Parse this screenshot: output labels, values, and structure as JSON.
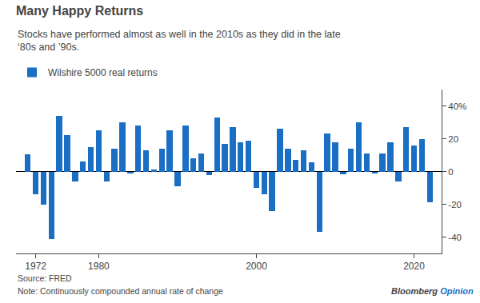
{
  "chart_data": {
    "type": "bar",
    "title": "Many Happy Returns",
    "subtitle": "Stocks have performed almost as well in the 2010s as they did in the late\n‘80s and ’90s.",
    "x": [
      1971,
      1972,
      1973,
      1974,
      1975,
      1976,
      1977,
      1978,
      1979,
      1980,
      1981,
      1982,
      1983,
      1984,
      1985,
      1986,
      1987,
      1988,
      1989,
      1990,
      1991,
      1992,
      1993,
      1994,
      1995,
      1996,
      1997,
      1998,
      1999,
      2000,
      2001,
      2002,
      2003,
      2004,
      2005,
      2006,
      2007,
      2008,
      2009,
      2010,
      2011,
      2012,
      2013,
      2014,
      2015,
      2016,
      2017,
      2018,
      2019,
      2020,
      2021,
      2022
    ],
    "series": [
      {
        "name": "Wilshire 5000 real returns",
        "color": "#1a6fc4",
        "values": [
          10.5,
          -14.0,
          -20.0,
          -41.0,
          34.0,
          22.0,
          -6.0,
          6.0,
          15.0,
          25.0,
          -6.0,
          14.0,
          30.0,
          -1.0,
          28.0,
          13.0,
          1.0,
          14.0,
          25.0,
          -9.0,
          28.0,
          8.0,
          11.0,
          -2.0,
          33.0,
          17.0,
          27.0,
          18.0,
          19.0,
          -10.0,
          -14.0,
          -24.0,
          26.0,
          14.0,
          7.0,
          13.0,
          5.5,
          -37.0,
          23.0,
          18.0,
          -1.5,
          14.0,
          30.0,
          11.0,
          -1.0,
          11.0,
          18.0,
          -6.0,
          27.0,
          16.0,
          20.0,
          -19.0
        ]
      }
    ],
    "xlim": [
      1969.5,
      2023.5
    ],
    "xticks": [
      1972,
      1980,
      2000,
      2020
    ],
    "ylim": [
      -50,
      50
    ],
    "yticks": [
      -40,
      -20,
      0,
      20,
      {
        "value": 40,
        "label": "40%"
      }
    ],
    "grid": false,
    "legend": "top left",
    "annotations": [
      "Source: FRED",
      "Note: Continuously compounded annual rate of change",
      "Bloomberg",
      "Opinion"
    ]
  }
}
